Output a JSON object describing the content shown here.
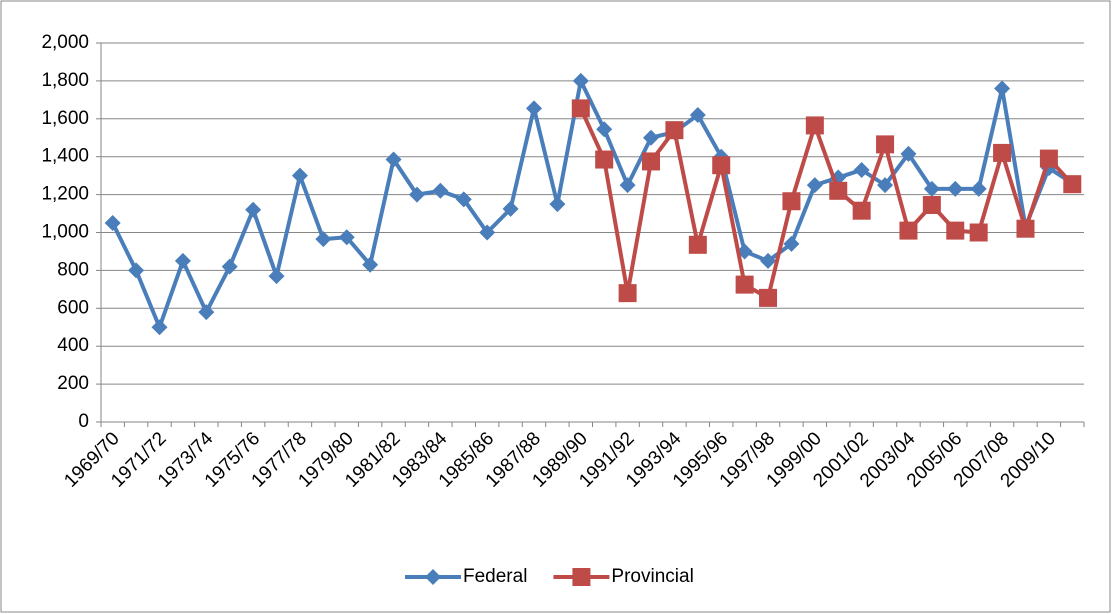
{
  "chart_data": {
    "type": "line",
    "categories": [
      "1969/70",
      null,
      "1971/72",
      null,
      "1973/74",
      null,
      "1975/76",
      null,
      "1977/78",
      null,
      "1979/80",
      null,
      "1981/82",
      null,
      "1983/84",
      null,
      "1985/86",
      null,
      "1987/88",
      null,
      "1989/90",
      null,
      "1991/92",
      null,
      "1993/94",
      null,
      "1995/96",
      null,
      "1997/98",
      null,
      "1999/00",
      null,
      "2001/02",
      null,
      "2003/04",
      null,
      "2005/06",
      null,
      "2007/08",
      null,
      "2009/10",
      null
    ],
    "series": [
      {
        "name": "Federal",
        "color": "#4a7ebb",
        "marker": "diamond",
        "values": [
          1050,
          800,
          500,
          850,
          580,
          820,
          1120,
          770,
          1300,
          965,
          975,
          830,
          1385,
          1200,
          1220,
          1175,
          1000,
          1125,
          1655,
          1150,
          1800,
          1545,
          1250,
          1500,
          1530,
          1620,
          1400,
          900,
          850,
          940,
          1250,
          1290,
          1330,
          1250,
          1415,
          1230,
          1230,
          1230,
          1760,
          1030,
          1340,
          1260
        ]
      },
      {
        "name": "Provincial",
        "color": "#be4b48",
        "marker": "square",
        "values": [
          null,
          null,
          null,
          null,
          null,
          null,
          null,
          null,
          null,
          null,
          null,
          null,
          null,
          null,
          null,
          null,
          null,
          null,
          null,
          null,
          1655,
          1385,
          680,
          1375,
          1540,
          935,
          1355,
          725,
          655,
          1165,
          1565,
          1220,
          1115,
          1465,
          1010,
          1145,
          1010,
          1000,
          1420,
          1020,
          1390,
          1255
        ]
      }
    ],
    "ylim": [
      0,
      2000
    ],
    "yticks": [
      0,
      200,
      400,
      600,
      800,
      {
        "value": 1000,
        "label": "1,000"
      },
      {
        "value": 1200,
        "label": "1,200"
      },
      {
        "value": 1400,
        "label": "1,400"
      },
      {
        "value": 1600,
        "label": "1,600"
      },
      {
        "value": 1800,
        "label": "1,800"
      },
      {
        "value": 2000,
        "label": "2,000"
      }
    ],
    "grid": true,
    "legend": "bottom"
  }
}
